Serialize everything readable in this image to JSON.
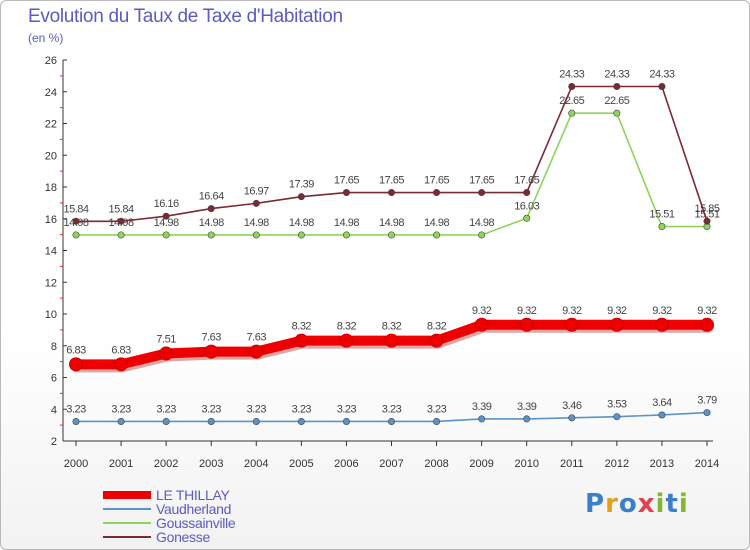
{
  "title": "Evolution du Taux de Taxe d'Habitation",
  "unit_label": "(en %)",
  "logo": {
    "letters": [
      "P",
      "r",
      "o",
      "x",
      "i",
      "t",
      "i"
    ],
    "colors": [
      "#3a7fc8",
      "#e0a020",
      "#3a7fc8",
      "#e04050",
      "#80b830",
      "#3a7fc8",
      "#80b830"
    ]
  },
  "chart_data": {
    "type": "line",
    "x": [
      "2000",
      "2001",
      "2002",
      "2003",
      "2004",
      "2005",
      "2006",
      "2007",
      "2008",
      "2009",
      "2010",
      "2011",
      "2012",
      "2013",
      "2014"
    ],
    "ylim": [
      2,
      26
    ],
    "yticks": [
      2,
      4,
      6,
      8,
      10,
      12,
      14,
      16,
      18,
      20,
      22,
      24,
      26
    ],
    "grid": false,
    "legend_position": "bottom-left",
    "series": [
      {
        "name": "LE THILLAY",
        "color": "#ee0000",
        "emphasis": true,
        "values": [
          6.83,
          6.83,
          7.51,
          7.63,
          7.63,
          8.32,
          8.32,
          8.32,
          8.32,
          9.32,
          9.32,
          9.32,
          9.32,
          9.32,
          9.32
        ],
        "labels": [
          "6.83",
          "6.83",
          "7.51",
          "7.63",
          "7.63",
          "8.32",
          "8.32",
          "8.32",
          "8.32",
          "9.32",
          "9.32",
          "9.32",
          "9.32",
          "9.32",
          "9.32"
        ]
      },
      {
        "name": "Vaudherland",
        "color": "#5b93c8",
        "emphasis": false,
        "values": [
          3.23,
          3.23,
          3.23,
          3.23,
          3.23,
          3.23,
          3.23,
          3.23,
          3.23,
          3.39,
          3.39,
          3.46,
          3.53,
          3.64,
          3.79
        ],
        "labels": [
          "3.23",
          "3.23",
          "3.23",
          "3.23",
          "3.23",
          "3.23",
          "3.23",
          "3.23",
          "3.23",
          "3.39",
          "3.39",
          "3.46",
          "3.53",
          "3.64",
          "3.79"
        ]
      },
      {
        "name": "Goussainville",
        "color": "#8fd35a",
        "emphasis": false,
        "values": [
          14.98,
          14.98,
          14.98,
          14.98,
          14.98,
          14.98,
          14.98,
          14.98,
          14.98,
          14.98,
          16.03,
          22.65,
          22.65,
          15.51,
          15.51
        ],
        "labels": [
          "14.98",
          "14.98",
          "14.98",
          "14.98",
          "14.98",
          "14.98",
          "14.98",
          "14.98",
          "14.98",
          "14.98",
          "16.03",
          "22.65",
          "22.65",
          "15.51",
          "15.51"
        ]
      },
      {
        "name": "Gonesse",
        "color": "#7a2a35",
        "emphasis": false,
        "values": [
          15.84,
          15.84,
          16.16,
          16.64,
          16.97,
          17.39,
          17.65,
          17.65,
          17.65,
          17.65,
          17.65,
          24.33,
          24.33,
          24.33,
          15.85
        ],
        "labels": [
          "15.84",
          "15.84",
          "16.16",
          "16.64",
          "16.97",
          "17.39",
          "17.65",
          "17.65",
          "17.65",
          "17.65",
          "17.65",
          "24.33",
          "24.33",
          "24.33",
          "15.85"
        ]
      }
    ]
  }
}
